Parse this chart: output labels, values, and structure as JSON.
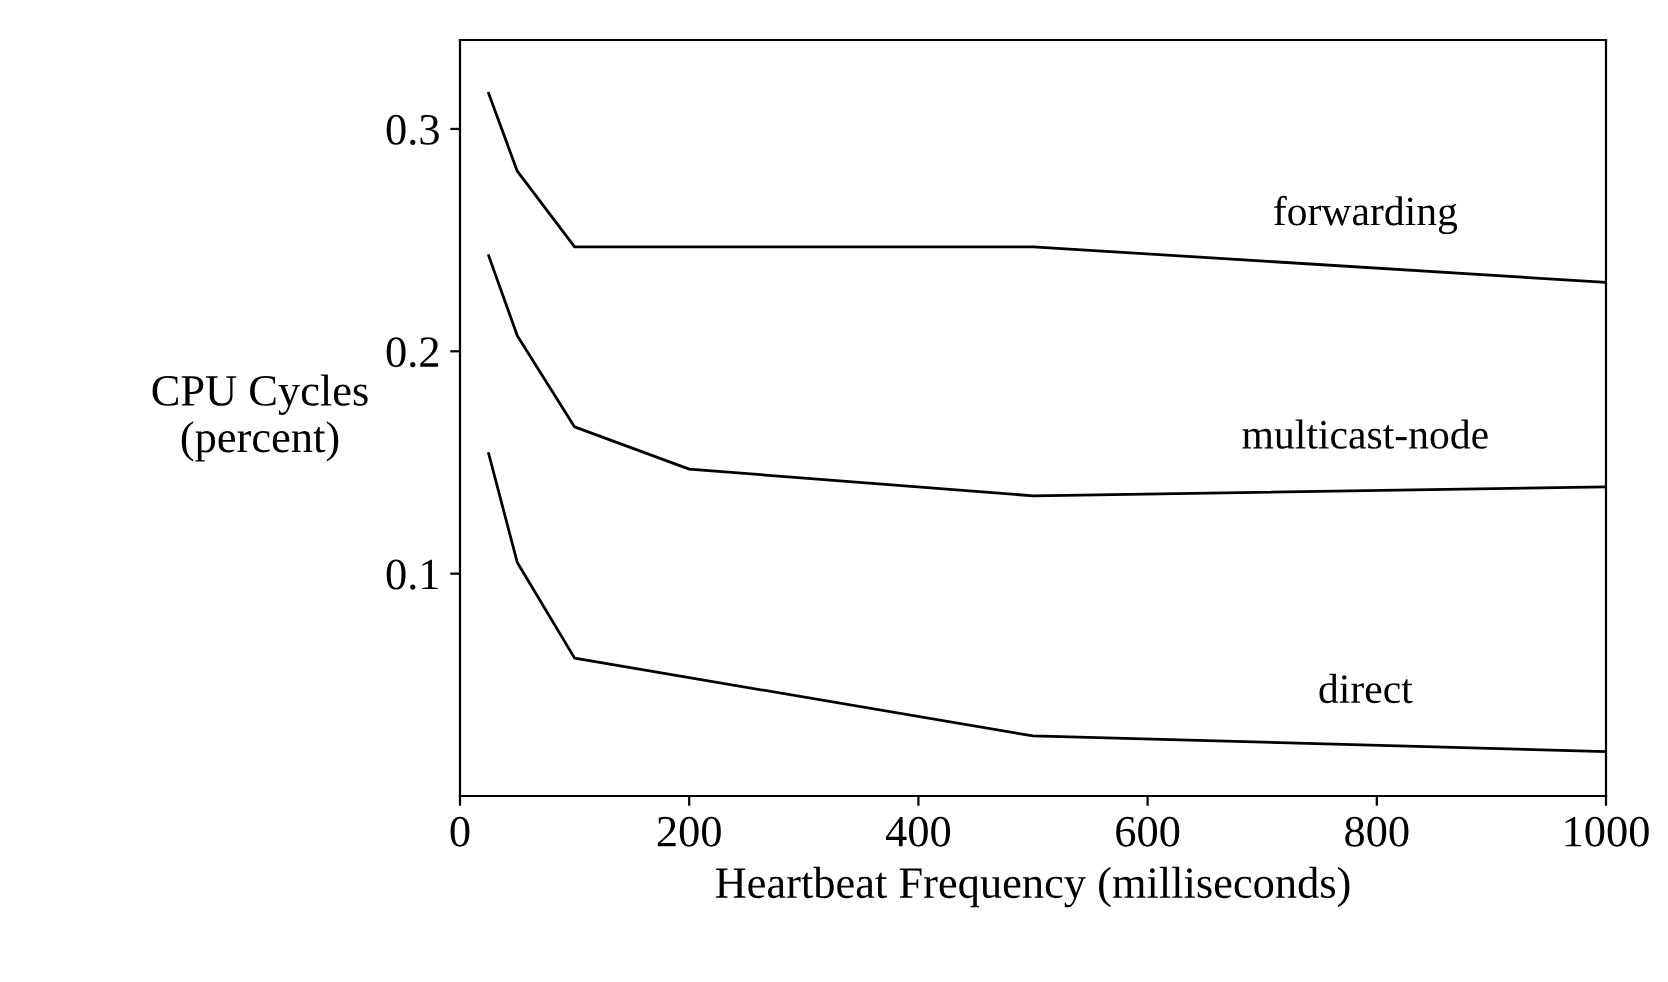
{
  "chart_data": {
    "type": "line",
    "xlabel": "Heartbeat Frequency (milliseconds)",
    "ylabel": "CPU Cycles\n(percent)",
    "xlim": [
      0,
      1000
    ],
    "xticks": [
      0,
      200,
      400,
      600,
      800,
      1000
    ],
    "ylim": [
      0,
      0.34
    ],
    "yticks": [
      0.1,
      0.2,
      0.3
    ],
    "grid": false,
    "legend": false,
    "marker": "none",
    "line_style": "solid",
    "series": [
      {
        "name": "forwarding",
        "color": "#000000",
        "x": [
          25,
          50,
          100,
          500,
          1000
        ],
        "values": [
          0.316,
          0.281,
          0.247,
          0.247,
          0.231
        ]
      },
      {
        "name": "multicast-node",
        "color": "#000000",
        "x": [
          25,
          50,
          100,
          200,
          500,
          1000
        ],
        "values": [
          0.243,
          0.207,
          0.166,
          0.147,
          0.135,
          0.139
        ]
      },
      {
        "name": "direct",
        "color": "#000000",
        "x": [
          25,
          50,
          100,
          500,
          1000
        ],
        "values": [
          0.154,
          0.105,
          0.062,
          0.027,
          0.02
        ]
      }
    ]
  }
}
